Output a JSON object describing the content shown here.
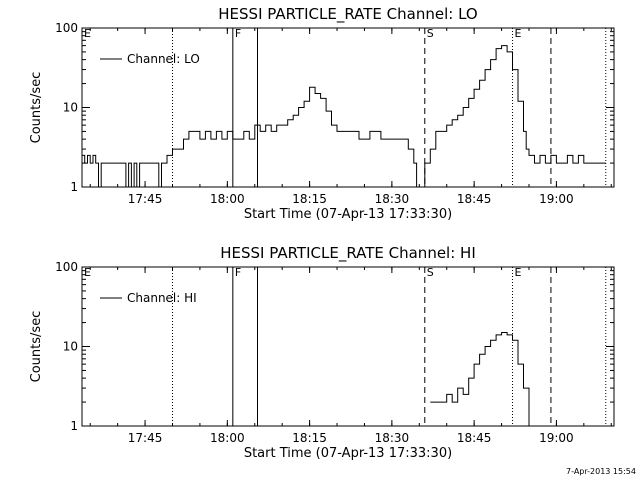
{
  "footer": {
    "timestamp": "7-Apr-2013 15:54"
  },
  "chart_data": [
    {
      "type": "line",
      "title": "HESSI PARTICLE_RATE Channel: LO",
      "xlabel": "Start Time (07-Apr-13 17:33:30)",
      "ylabel": "Counts/sec",
      "yscale": "log",
      "ylim": [
        1,
        100
      ],
      "xlim": [
        "17:33:30",
        "19:10:30"
      ],
      "xticks": [
        "17:45",
        "18:00",
        "18:15",
        "18:30",
        "18:45",
        "19:00"
      ],
      "yticks": [
        "1",
        "10",
        "100"
      ],
      "legend": "top-left",
      "series": [
        {
          "name": "Channel: LO",
          "x": [
            "17:33:30",
            "17:34:00",
            "17:34:30",
            "17:35:00",
            "17:35:30",
            "17:36:00",
            "17:36:30",
            "17:37:00",
            "17:38:00",
            "17:39:00",
            "17:40:00",
            "17:41:00",
            "17:41:30",
            "17:42:00",
            "17:42:30",
            "17:43:00",
            "17:43:30",
            "17:44:00",
            "17:45:00",
            "17:46:00",
            "17:47:00",
            "17:47:30",
            "17:48:00",
            "17:49:00",
            "17:50:00",
            "17:51:00",
            "17:52:00",
            "17:53:00",
            "17:54:00",
            "17:55:00",
            "17:56:00",
            "17:57:00",
            "17:58:00",
            "17:59:00",
            "18:00:00",
            "18:01:00",
            "18:02:00",
            "18:03:00",
            "18:04:00",
            "18:05:00",
            "18:06:00",
            "18:07:00",
            "18:08:00",
            "18:09:00",
            "18:10:00",
            "18:11:00",
            "18:12:00",
            "18:13:00",
            "18:14:00",
            "18:15:00",
            "18:16:00",
            "18:17:00",
            "18:18:00",
            "18:19:00",
            "18:20:00",
            "18:22:00",
            "18:24:00",
            "18:26:00",
            "18:28:00",
            "18:30:00",
            "18:31:00",
            "18:32:00",
            "18:33:00",
            "18:34:00",
            "18:34:30",
            "18:35:00",
            "18:36:00",
            "18:37:00",
            "18:38:00",
            "18:39:00",
            "18:40:00",
            "18:41:00",
            "18:42:00",
            "18:43:00",
            "18:44:00",
            "18:45:00",
            "18:46:00",
            "18:47:00",
            "18:48:00",
            "18:49:00",
            "18:50:00",
            "18:51:00",
            "18:52:00",
            "18:53:00",
            "18:54:00",
            "18:54:30",
            "18:55:00",
            "18:56:00",
            "18:57:00",
            "18:58:00",
            "18:59:00",
            "19:00:00",
            "19:01:00",
            "19:02:00",
            "19:03:00",
            "19:04:00",
            "19:05:00",
            "19:06:00",
            "19:07:00",
            "19:08:00",
            "19:09:00"
          ],
          "y": [
            2.5,
            2,
            2.5,
            2,
            2.5,
            2,
            1,
            2,
            2,
            2,
            2,
            2,
            1,
            2,
            1,
            2,
            1,
            2,
            2,
            2,
            2,
            1,
            2,
            2.5,
            3,
            3,
            4,
            5,
            5,
            4,
            5,
            4,
            5,
            4,
            5,
            4,
            4,
            5,
            4,
            6,
            5,
            6,
            5,
            6,
            6,
            7,
            8,
            10,
            12,
            18,
            15,
            13,
            9,
            6,
            5,
            5,
            4,
            5,
            4,
            4,
            4,
            4,
            3,
            2,
            1,
            1,
            2,
            3,
            5,
            5,
            6,
            7,
            8,
            10,
            13,
            17,
            22,
            30,
            40,
            55,
            60,
            50,
            30,
            12,
            5,
            3,
            2.5,
            2,
            2.5,
            2,
            2.5,
            2,
            2,
            2.5,
            2,
            2.5,
            2,
            2,
            2,
            2,
            2
          ]
        }
      ],
      "annotations": [
        {
          "flag": "E",
          "time": "17:33:30",
          "style": "dotted"
        },
        {
          "flag": "",
          "time": "17:50:00",
          "style": "dotted"
        },
        {
          "flag": "F",
          "time": "18:01:00",
          "style": "solid"
        },
        {
          "flag": "",
          "time": "18:05:30",
          "style": "solid"
        },
        {
          "flag": "S",
          "time": "18:36:00",
          "style": "dashed"
        },
        {
          "flag": "E",
          "time": "18:52:00",
          "style": "dotted"
        },
        {
          "flag": "",
          "time": "18:59:00",
          "style": "dashed"
        },
        {
          "flag": "",
          "time": "19:09:00",
          "style": "dotted"
        }
      ]
    },
    {
      "type": "line",
      "title": "HESSI PARTICLE_RATE Channel: HI",
      "xlabel": "Start Time (07-Apr-13 17:33:30)",
      "ylabel": "Counts/sec",
      "yscale": "log",
      "ylim": [
        1,
        100
      ],
      "xlim": [
        "17:33:30",
        "19:10:30"
      ],
      "xticks": [
        "17:45",
        "18:00",
        "18:15",
        "18:30",
        "18:45",
        "19:00"
      ],
      "yticks": [
        "1",
        "10",
        "100"
      ],
      "legend": "top-left",
      "series": [
        {
          "name": "Channel: HI",
          "x": [
            "18:37:00",
            "18:38:00",
            "18:39:00",
            "18:40:00",
            "18:41:00",
            "18:42:00",
            "18:43:00",
            "18:44:00",
            "18:45:00",
            "18:46:00",
            "18:47:00",
            "18:48:00",
            "18:49:00",
            "18:50:00",
            "18:51:00",
            "18:52:00",
            "18:53:00",
            "18:54:00",
            "18:55:00"
          ],
          "y": [
            2,
            2,
            2,
            2.5,
            2,
            3,
            2.5,
            4,
            6,
            8,
            10,
            12,
            14,
            15,
            14,
            12,
            6,
            3,
            1
          ]
        }
      ],
      "annotations": [
        {
          "flag": "E",
          "time": "17:33:30",
          "style": "dotted"
        },
        {
          "flag": "",
          "time": "17:50:00",
          "style": "dotted"
        },
        {
          "flag": "F",
          "time": "18:01:00",
          "style": "solid"
        },
        {
          "flag": "",
          "time": "18:05:30",
          "style": "solid"
        },
        {
          "flag": "S",
          "time": "18:36:00",
          "style": "dashed"
        },
        {
          "flag": "E",
          "time": "18:52:00",
          "style": "dotted"
        },
        {
          "flag": "",
          "time": "18:59:00",
          "style": "dashed"
        },
        {
          "flag": "",
          "time": "19:09:00",
          "style": "dotted"
        }
      ]
    }
  ]
}
